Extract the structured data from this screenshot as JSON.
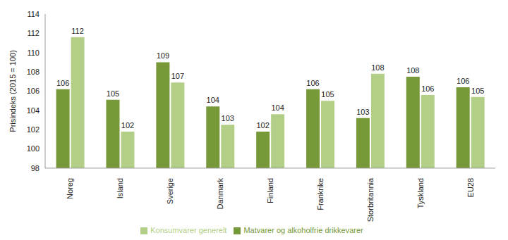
{
  "chart_data": {
    "type": "bar",
    "y_label": "Prisindeks (2015 = 100)",
    "categories": [
      "Noreg",
      "Island",
      "Sverige",
      "Danmark",
      "Finland",
      "Frankrike",
      "Storbritannia",
      "Tyskland",
      "EU28"
    ],
    "series": [
      {
        "name": "Matvarer og alkoholfrie drikkevarer",
        "color": "#77993a",
        "values": [
          106.2,
          105.1,
          109.0,
          104.4,
          101.8,
          106.2,
          103.2,
          107.5,
          106.4
        ],
        "value_labels": [
          "106",
          "105",
          "109",
          "104",
          "102",
          "106",
          "103",
          "108",
          "106"
        ]
      },
      {
        "name": "Konsumvarer generelt",
        "color": "#b3cf87",
        "values": [
          111.6,
          101.8,
          106.9,
          102.5,
          103.6,
          105.0,
          107.8,
          105.6,
          105.4
        ],
        "value_labels": [
          "112",
          "102",
          "107",
          "103",
          "104",
          "105",
          "108",
          "106",
          "105"
        ]
      }
    ],
    "ylim": [
      98,
      114
    ],
    "yticks": [
      98,
      100,
      102,
      104,
      106,
      108,
      110,
      112,
      114
    ],
    "grid": false,
    "data_labels": true,
    "legend": "bottom"
  }
}
